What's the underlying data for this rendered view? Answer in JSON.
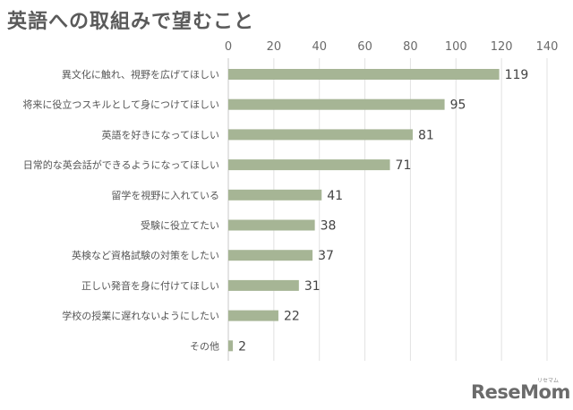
{
  "chart_data": {
    "type": "bar",
    "orientation": "horizontal",
    "title": "英語への取組みで望むこと",
    "categories": [
      "異文化に触れ、視野を広げてほしい",
      "将来に役立つスキルとして身につけてほしい",
      "英語を好きになってほしい",
      "日常的な英会話ができるようになってほしい",
      "留学を視野に入れている",
      "受験に役立てたい",
      "英検など資格試験の対策をしたい",
      "正しい発音を身に付けてほしい",
      "学校の授業に遅れないようにしたい",
      "その他"
    ],
    "values": [
      119,
      95,
      81,
      71,
      41,
      38,
      37,
      31,
      22,
      2
    ],
    "xlim": [
      0,
      140
    ],
    "ticks": [
      "0",
      "20",
      "40",
      "60",
      "80",
      "100",
      "120",
      "140"
    ],
    "grid": true,
    "bar_color": "#a6b595"
  },
  "logo": {
    "text": "ReseMom",
    "ruby": "リセマム"
  }
}
